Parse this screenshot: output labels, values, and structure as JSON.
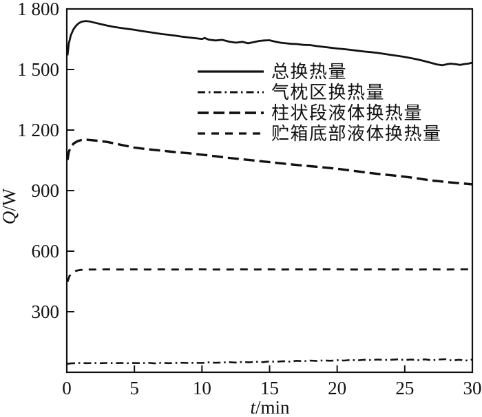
{
  "figure": {
    "background": "#ffffff",
    "line_color": "#111111",
    "axis_color": "#111111"
  },
  "chart_data": {
    "type": "line",
    "title": "",
    "xlabel": "t/min",
    "ylabel": "Q/W",
    "xlim": [
      0,
      30
    ],
    "ylim": [
      0,
      1800
    ],
    "xticks": [
      0,
      5,
      10,
      15,
      20,
      25,
      30
    ],
    "xtick_labels": [
      "0",
      "5",
      "10",
      "15",
      "20",
      "25",
      "30"
    ],
    "yticks": [
      300,
      600,
      900,
      1200,
      1500,
      1800
    ],
    "ytick_labels": [
      "300",
      "600",
      "900",
      "1 200",
      "1 500",
      "1 800"
    ],
    "grid": false,
    "legend_position": "upper-center-inside",
    "series": [
      {
        "name": "总换热量",
        "style": "solid",
        "points": [
          [
            0.05,
            1570
          ],
          [
            0.15,
            1628
          ],
          [
            0.3,
            1670
          ],
          [
            0.5,
            1700
          ],
          [
            0.7,
            1718
          ],
          [
            0.9,
            1730
          ],
          [
            1.1,
            1737
          ],
          [
            1.4,
            1740
          ],
          [
            1.7,
            1738
          ],
          [
            2,
            1733
          ],
          [
            2.5,
            1725
          ],
          [
            3,
            1717
          ],
          [
            3.5,
            1711
          ],
          [
            4,
            1706
          ],
          [
            4.5,
            1701
          ],
          [
            5,
            1697
          ],
          [
            5.5,
            1691
          ],
          [
            6,
            1686
          ],
          [
            6.5,
            1681
          ],
          [
            7,
            1676
          ],
          [
            7.5,
            1672
          ],
          [
            8,
            1668
          ],
          [
            8.5,
            1663
          ],
          [
            9,
            1659
          ],
          [
            9.5,
            1655
          ],
          [
            10,
            1651
          ],
          [
            10.2,
            1656
          ],
          [
            10.5,
            1648
          ],
          [
            11,
            1644
          ],
          [
            11.5,
            1647
          ],
          [
            12,
            1638
          ],
          [
            12.5,
            1633
          ],
          [
            13,
            1637
          ],
          [
            13.4,
            1630
          ],
          [
            13.8,
            1635
          ],
          [
            14.2,
            1641
          ],
          [
            14.6,
            1644
          ],
          [
            15,
            1645
          ],
          [
            15.4,
            1638
          ],
          [
            15.8,
            1633
          ],
          [
            16.2,
            1630
          ],
          [
            16.6,
            1627
          ],
          [
            17,
            1626
          ],
          [
            17.5,
            1622
          ],
          [
            18,
            1621
          ],
          [
            18.5,
            1616
          ],
          [
            19,
            1612
          ],
          [
            19.5,
            1608
          ],
          [
            20,
            1604
          ],
          [
            20.5,
            1601
          ],
          [
            21,
            1597
          ],
          [
            21.5,
            1593
          ],
          [
            22,
            1589
          ],
          [
            22.5,
            1586
          ],
          [
            23,
            1582
          ],
          [
            23.5,
            1577
          ],
          [
            24,
            1572
          ],
          [
            24.5,
            1567
          ],
          [
            25,
            1562
          ],
          [
            25.5,
            1556
          ],
          [
            26,
            1549
          ],
          [
            26.5,
            1541
          ],
          [
            27,
            1532
          ],
          [
            27.4,
            1525
          ],
          [
            27.8,
            1521
          ],
          [
            28.1,
            1526
          ],
          [
            28.4,
            1529
          ],
          [
            28.8,
            1526
          ],
          [
            29.1,
            1523
          ],
          [
            29.4,
            1527
          ],
          [
            29.7,
            1529
          ],
          [
            30,
            1534
          ]
        ]
      },
      {
        "name": "气枕区换热量",
        "style": "dash-dot",
        "points": [
          [
            0.05,
            42
          ],
          [
            0.3,
            44
          ],
          [
            0.6,
            45
          ],
          [
            1,
            46
          ],
          [
            1.5,
            45
          ],
          [
            2,
            46
          ],
          [
            2.5,
            45
          ],
          [
            3,
            46
          ],
          [
            3.5,
            45
          ],
          [
            4,
            46
          ],
          [
            4.5,
            45
          ],
          [
            5,
            46
          ],
          [
            5.5,
            45
          ],
          [
            6,
            47
          ],
          [
            6.5,
            44
          ],
          [
            7,
            47
          ],
          [
            7.5,
            45
          ],
          [
            8,
            46
          ],
          [
            8.5,
            47
          ],
          [
            9,
            46
          ],
          [
            9.5,
            47
          ],
          [
            10,
            46
          ],
          [
            10.5,
            49
          ],
          [
            11,
            47
          ],
          [
            11.5,
            48
          ],
          [
            12,
            50
          ],
          [
            12.5,
            48
          ],
          [
            13,
            51
          ],
          [
            13.5,
            49
          ],
          [
            14,
            52
          ],
          [
            14.5,
            50
          ],
          [
            15,
            54
          ],
          [
            15.5,
            52
          ],
          [
            16,
            55
          ],
          [
            16.5,
            53
          ],
          [
            17,
            57
          ],
          [
            17.5,
            55
          ],
          [
            18,
            58
          ],
          [
            18.5,
            56
          ],
          [
            19,
            59
          ],
          [
            19.5,
            57
          ],
          [
            20,
            60
          ],
          [
            20.5,
            58
          ],
          [
            21,
            61
          ],
          [
            21.5,
            59
          ],
          [
            22,
            62
          ],
          [
            22.5,
            60
          ],
          [
            23,
            63
          ],
          [
            23.5,
            61
          ],
          [
            24,
            62
          ],
          [
            24.5,
            64
          ],
          [
            25,
            61
          ],
          [
            25.5,
            63
          ],
          [
            26,
            60
          ],
          [
            26.5,
            64
          ],
          [
            27,
            59
          ],
          [
            27.5,
            63
          ],
          [
            28,
            65
          ],
          [
            28.5,
            58
          ],
          [
            29,
            62
          ],
          [
            29.5,
            58
          ],
          [
            30,
            63
          ]
        ]
      },
      {
        "name": "柱状段液体换热量",
        "style": "long-dash",
        "points": [
          [
            0.05,
            1052
          ],
          [
            0.15,
            1092
          ],
          [
            0.3,
            1116
          ],
          [
            0.5,
            1133
          ],
          [
            0.8,
            1145
          ],
          [
            1.1,
            1151
          ],
          [
            1.5,
            1152
          ],
          [
            2,
            1149
          ],
          [
            2.5,
            1145
          ],
          [
            3,
            1141
          ],
          [
            4,
            1127
          ],
          [
            5,
            1113
          ],
          [
            6,
            1105
          ],
          [
            7,
            1098
          ],
          [
            8,
            1091
          ],
          [
            9,
            1085
          ],
          [
            10,
            1078
          ],
          [
            11,
            1070
          ],
          [
            12,
            1062
          ],
          [
            13,
            1055
          ],
          [
            14,
            1048
          ],
          [
            15,
            1041
          ],
          [
            16,
            1034
          ],
          [
            17,
            1027
          ],
          [
            18,
            1021
          ],
          [
            19,
            1015
          ],
          [
            20,
            1008
          ],
          [
            21,
            1000
          ],
          [
            22,
            991
          ],
          [
            23,
            983
          ],
          [
            24,
            976
          ],
          [
            25,
            969
          ],
          [
            26,
            960
          ],
          [
            26.5,
            955
          ],
          [
            27,
            950
          ],
          [
            27.5,
            947
          ],
          [
            28,
            943
          ],
          [
            28.5,
            940
          ],
          [
            29,
            937
          ],
          [
            29.5,
            934
          ],
          [
            30,
            931
          ]
        ]
      },
      {
        "name": "贮箱底部液体换热量",
        "style": "dash",
        "points": [
          [
            0.05,
            448
          ],
          [
            0.2,
            477
          ],
          [
            0.4,
            494
          ],
          [
            0.7,
            503
          ],
          [
            1,
            507
          ],
          [
            1.5,
            509
          ],
          [
            2,
            509
          ],
          [
            3,
            510
          ],
          [
            4,
            509
          ],
          [
            5,
            510
          ],
          [
            6,
            509
          ],
          [
            7,
            510
          ],
          [
            8,
            509
          ],
          [
            9,
            510
          ],
          [
            10,
            510
          ],
          [
            11,
            509
          ],
          [
            12,
            509
          ],
          [
            13,
            510
          ],
          [
            14,
            509
          ],
          [
            15,
            510
          ],
          [
            16,
            509
          ],
          [
            17,
            510
          ],
          [
            18,
            509
          ],
          [
            19,
            510
          ],
          [
            20,
            510
          ],
          [
            21,
            509
          ],
          [
            22,
            509
          ],
          [
            23,
            510
          ],
          [
            24,
            509
          ],
          [
            25,
            510
          ],
          [
            26,
            509
          ],
          [
            27,
            510
          ],
          [
            28,
            509
          ],
          [
            29,
            510
          ],
          [
            30,
            510
          ]
        ]
      }
    ]
  }
}
